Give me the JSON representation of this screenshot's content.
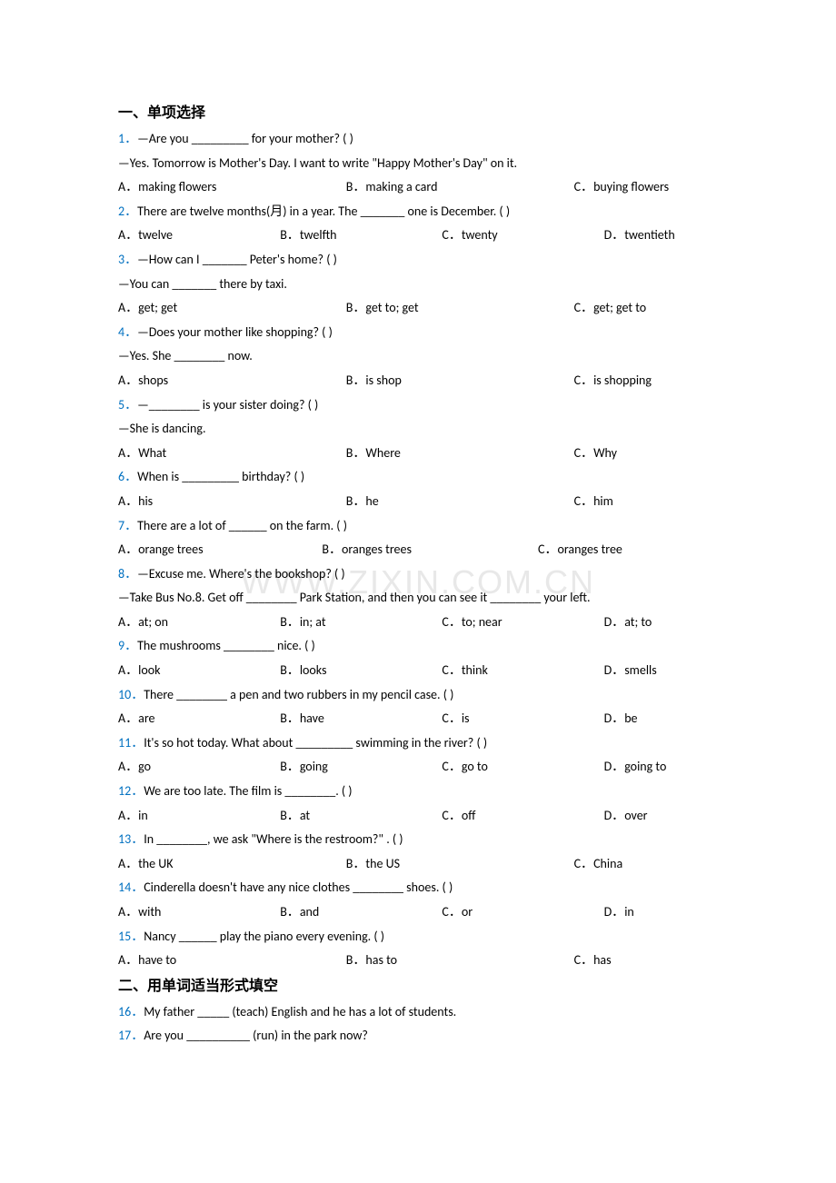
{
  "colors": {
    "qnum": "#0070c0",
    "text": "#000000",
    "watermark": "#e8e8e8",
    "background": "#ffffff"
  },
  "typography": {
    "body_fontsize": 14,
    "title_fontsize": 16,
    "line_height": 1.9,
    "number_font": "Calibri",
    "cjk_font": "SimSun"
  },
  "watermark": "WWW.ZIXIN.COM.CN",
  "sections": [
    {
      "title": "一、单项选择",
      "questions": [
        {
          "num": "1．",
          "lines": [
            "—Are you _________ for your mother? (    )",
            "—Yes. Tomorrow is Mother's Day. I want to write \"Happy Mother's Day\" on it."
          ],
          "options": [
            {
              "label": "A．",
              "text": "making flowers",
              "width": "38%"
            },
            {
              "label": "B．",
              "text": "making a card",
              "width": "38%"
            },
            {
              "label": "C．",
              "text": "buying flowers",
              "width": "24%"
            }
          ]
        },
        {
          "num": "2．",
          "lines": [
            "There are twelve months(月) in a year. The _______ one is December. (    )"
          ],
          "options": [
            {
              "label": "A．",
              "text": "twelve",
              "width": "27%"
            },
            {
              "label": "B．",
              "text": "twelfth",
              "width": "27%"
            },
            {
              "label": "C．",
              "text": "twenty",
              "width": "27%"
            },
            {
              "label": "D．",
              "text": "twentieth",
              "width": "19%"
            }
          ]
        },
        {
          "num": "3．",
          "lines": [
            "—How can I _______ Peter's home? (   )",
            "—You can _______ there by taxi."
          ],
          "options": [
            {
              "label": "A．",
              "text": "get; get",
              "width": "38%"
            },
            {
              "label": "B．",
              "text": "get to; get",
              "width": "38%"
            },
            {
              "label": "C．",
              "text": "get; get to",
              "width": "24%"
            }
          ]
        },
        {
          "num": "4．",
          "lines": [
            "—Does your mother like shopping? (     )",
            "—Yes. She ________ now."
          ],
          "options": [
            {
              "label": "A．",
              "text": "shops",
              "width": "38%"
            },
            {
              "label": "B．",
              "text": "is shop",
              "width": "38%"
            },
            {
              "label": "C．",
              "text": "is shopping",
              "width": "24%"
            }
          ]
        },
        {
          "num": "5．",
          "lines": [
            "—________ is your sister doing? (     )",
            "—She is dancing."
          ],
          "options": [
            {
              "label": "A．",
              "text": "What",
              "width": "38%"
            },
            {
              "label": "B．",
              "text": "Where",
              "width": "38%"
            },
            {
              "label": "C．",
              "text": "Why",
              "width": "24%"
            }
          ]
        },
        {
          "num": "6．",
          "lines": [
            "When is _________ birthday? (     )"
          ],
          "options": [
            {
              "label": "A．",
              "text": "his",
              "width": "38%"
            },
            {
              "label": "B．",
              "text": "he",
              "width": "38%"
            },
            {
              "label": "C．",
              "text": "him",
              "width": "24%"
            }
          ]
        },
        {
          "num": "7．",
          "lines": [
            "There are a lot of ______ on the farm. (   )"
          ],
          "options": [
            {
              "label": "A．",
              "text": "orange trees",
              "width": "34%"
            },
            {
              "label": "B．",
              "text": "oranges trees",
              "width": "36%"
            },
            {
              "label": "C．",
              "text": "oranges tree",
              "width": "30%"
            }
          ]
        },
        {
          "num": "8．",
          "lines": [
            "—Excuse me. Where's the bookshop? (   )",
            "—Take Bus No.8. Get off ________ Park Station, and then you can see it ________ your left."
          ],
          "options": [
            {
              "label": "A．",
              "text": "at; on",
              "width": "27%"
            },
            {
              "label": "B．",
              "text": "in; at",
              "width": "27%"
            },
            {
              "label": "C．",
              "text": "to; near",
              "width": "27%"
            },
            {
              "label": "D．",
              "text": "at; to",
              "width": "19%"
            }
          ]
        },
        {
          "num": "9．",
          "lines": [
            "The mushrooms ________ nice. (    )"
          ],
          "options": [
            {
              "label": "A．",
              "text": "look",
              "width": "27%"
            },
            {
              "label": "B．",
              "text": "looks",
              "width": "27%"
            },
            {
              "label": "C．",
              "text": "think",
              "width": "27%"
            },
            {
              "label": "D．",
              "text": "smells",
              "width": "19%"
            }
          ]
        },
        {
          "num": "10．",
          "lines": [
            "There ________ a pen and two rubbers in my pencil case. (    )"
          ],
          "options": [
            {
              "label": "A．",
              "text": "are",
              "width": "27%"
            },
            {
              "label": "B．",
              "text": "have",
              "width": "27%"
            },
            {
              "label": "C．",
              "text": "is",
              "width": "27%"
            },
            {
              "label": "D．",
              "text": "be",
              "width": "19%"
            }
          ]
        },
        {
          "num": "11．",
          "lines": [
            "It's so hot today. What about _________ swimming in the river? (   )"
          ],
          "options": [
            {
              "label": "A．",
              "text": "go",
              "width": "27%"
            },
            {
              "label": "B．",
              "text": "going",
              "width": "27%"
            },
            {
              "label": "C．",
              "text": "go to",
              "width": "27%"
            },
            {
              "label": "D．",
              "text": "going to",
              "width": "19%"
            }
          ]
        },
        {
          "num": "12．",
          "lines": [
            "We are too late. The film is ________. (   )"
          ],
          "options": [
            {
              "label": "A．",
              "text": "in",
              "width": "27%"
            },
            {
              "label": "B．",
              "text": "at",
              "width": "27%"
            },
            {
              "label": "C．",
              "text": "off",
              "width": "27%"
            },
            {
              "label": "D．",
              "text": "over",
              "width": "19%"
            }
          ]
        },
        {
          "num": "13．",
          "lines": [
            "In ________, we ask \"Where is the restroom?\" . (     )"
          ],
          "options": [
            {
              "label": "A．",
              "text": "the UK",
              "width": "38%"
            },
            {
              "label": "B．",
              "text": "the US",
              "width": "38%"
            },
            {
              "label": "C．",
              "text": "China",
              "width": "24%"
            }
          ]
        },
        {
          "num": "14．",
          "lines": [
            "Cinderella doesn't have any nice clothes ________ shoes. (    )"
          ],
          "options": [
            {
              "label": "A．",
              "text": "with",
              "width": "27%"
            },
            {
              "label": "B．",
              "text": "and",
              "width": "27%"
            },
            {
              "label": "C．",
              "text": "or",
              "width": "27%"
            },
            {
              "label": "D．",
              "text": "in",
              "width": "19%"
            }
          ]
        },
        {
          "num": "15．",
          "lines": [
            "Nancy ______ play the piano every evening. (     )"
          ],
          "options": [
            {
              "label": "A．",
              "text": "have to",
              "width": "38%"
            },
            {
              "label": "B．",
              "text": "has to",
              "width": "38%"
            },
            {
              "label": "C．",
              "text": "has",
              "width": "24%"
            }
          ]
        }
      ]
    },
    {
      "title": "二、用单词适当形式填空",
      "questions": [
        {
          "num": "16．",
          "lines": [
            "My father _____ (teach) English and he has a lot of students."
          ],
          "options": []
        },
        {
          "num": "17．",
          "lines": [
            "Are you __________ (run) in the park now?"
          ],
          "options": []
        }
      ]
    }
  ]
}
